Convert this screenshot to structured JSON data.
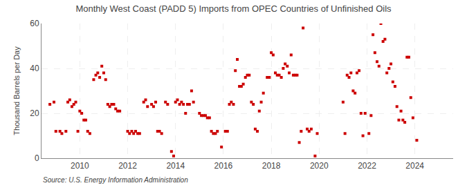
{
  "chart_data": {
    "type": "scatter",
    "title": "Monthly West Coast (PADD 5) Imports from OPEC Countries of Unfinished Oils",
    "ylabel": "Thousand Barrels per Day",
    "annotations": [
      "Source: U.S. Energy Information Administration"
    ],
    "color": "#cc0000",
    "marker": "square",
    "grid": true,
    "xlim": [
      2008.4,
      2025.6
    ],
    "xticks": [
      2010,
      2012,
      2014,
      2016,
      2018,
      2020,
      2022,
      2024
    ],
    "ylim": [
      0,
      60
    ],
    "yticks": [
      0,
      20,
      40,
      60
    ],
    "x": [
      2008.75,
      2008.92,
      2009.0,
      2009.17,
      2009.25,
      2009.42,
      2009.5,
      2009.58,
      2009.67,
      2009.75,
      2009.83,
      2009.92,
      2010.0,
      2010.08,
      2010.17,
      2010.25,
      2010.33,
      2010.42,
      2010.58,
      2010.67,
      2010.75,
      2010.83,
      2010.92,
      2011.0,
      2011.08,
      2011.17,
      2011.25,
      2011.33,
      2011.42,
      2011.5,
      2011.58,
      2011.67,
      2012.0,
      2012.08,
      2012.17,
      2012.25,
      2012.33,
      2012.42,
      2012.5,
      2012.67,
      2012.75,
      2012.83,
      2013.0,
      2013.08,
      2013.17,
      2013.25,
      2013.33,
      2013.42,
      2013.58,
      2013.67,
      2013.83,
      2013.92,
      2014.0,
      2014.08,
      2014.17,
      2014.25,
      2014.33,
      2014.42,
      2014.5,
      2014.58,
      2014.67,
      2014.75,
      2015.0,
      2015.08,
      2015.17,
      2015.25,
      2015.33,
      2015.42,
      2015.5,
      2015.58,
      2015.67,
      2015.75,
      2015.92,
      2016.08,
      2016.17,
      2016.25,
      2016.33,
      2016.42,
      2016.5,
      2016.58,
      2016.67,
      2016.75,
      2016.83,
      2016.92,
      2017.0,
      2017.08,
      2017.17,
      2017.25,
      2017.33,
      2017.42,
      2017.5,
      2017.58,
      2017.67,
      2017.83,
      2017.92,
      2018.0,
      2018.08,
      2018.17,
      2018.25,
      2018.33,
      2018.42,
      2018.5,
      2018.58,
      2018.67,
      2018.75,
      2018.83,
      2018.92,
      2019.0,
      2019.08,
      2019.17,
      2019.25,
      2019.33,
      2019.5,
      2019.58,
      2019.67,
      2019.83,
      2019.92,
      2021.0,
      2021.08,
      2021.17,
      2021.25,
      2021.33,
      2021.42,
      2021.5,
      2021.58,
      2021.67,
      2021.75,
      2021.83,
      2021.92,
      2022.08,
      2022.17,
      2022.25,
      2022.33,
      2022.42,
      2022.5,
      2022.58,
      2022.67,
      2022.75,
      2022.83,
      2022.92,
      2023.0,
      2023.08,
      2023.17,
      2023.25,
      2023.33,
      2023.42,
      2023.5,
      2023.58,
      2023.67,
      2023.75,
      2023.83,
      2023.92,
      2024.08
    ],
    "values": [
      24,
      25,
      12,
      12,
      11,
      12,
      25,
      26,
      23,
      24,
      25,
      12,
      21,
      20,
      17,
      17,
      12,
      11,
      35,
      37,
      38,
      36,
      41,
      38,
      35,
      24,
      23,
      24,
      24,
      22,
      21,
      21,
      12,
      11,
      12,
      11,
      12,
      11,
      11,
      25,
      26,
      23,
      24,
      23,
      25,
      12,
      12,
      11,
      25,
      24,
      3,
      1,
      25,
      26,
      24,
      25,
      24,
      20,
      24,
      24,
      30,
      25,
      20,
      19,
      19,
      19,
      18,
      18,
      12,
      11,
      11,
      12,
      5,
      12,
      12,
      24,
      25,
      24,
      39,
      44,
      32,
      32,
      33,
      36,
      37,
      37,
      25,
      24,
      13,
      12,
      21,
      25,
      29,
      36,
      36,
      47,
      46,
      38,
      37,
      37,
      36,
      40,
      42,
      41,
      38,
      46,
      37,
      37,
      37,
      7,
      12,
      58,
      13,
      12,
      13,
      1,
      11,
      25,
      11,
      37,
      36,
      38,
      30,
      29,
      38,
      39,
      20,
      10,
      20,
      11,
      19,
      55,
      47,
      43,
      41,
      60,
      52,
      53,
      38,
      40,
      42,
      34,
      32,
      23,
      17,
      21,
      17,
      16,
      45,
      45,
      27,
      18,
      8
    ]
  }
}
